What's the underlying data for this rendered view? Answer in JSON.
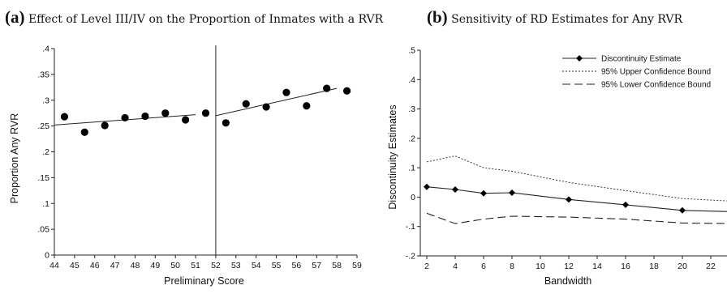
{
  "panels": {
    "a": {
      "letter": "(a)",
      "title": "Effect of Level III/IV on the Proportion of Inmates with a RVR"
    },
    "b": {
      "letter": "(b)",
      "title": "Sensitivity of RD Estimates for Any RVR"
    }
  },
  "chart_data": [
    {
      "type": "scatter",
      "title": "Effect of Level III/IV on the Proportion of Inmates with a RVR",
      "xlabel": "Preliminary Score",
      "ylabel": "Proportion Any RVR",
      "xlim": [
        44,
        59
      ],
      "ylim": [
        0,
        0.4
      ],
      "xticks": [
        "44",
        "45",
        "46",
        "47",
        "48",
        "49",
        "50",
        "51",
        "52",
        "53",
        "54",
        "55",
        "56",
        "57",
        "58",
        "59"
      ],
      "yticks": [
        "0",
        ".05",
        ".1",
        ".15",
        ".2",
        ".25",
        ".3",
        ".35",
        ".4"
      ],
      "cutoff": 52,
      "points": [
        {
          "x": 44.5,
          "y": 0.268
        },
        {
          "x": 45.5,
          "y": 0.238
        },
        {
          "x": 46.5,
          "y": 0.251
        },
        {
          "x": 47.5,
          "y": 0.266
        },
        {
          "x": 48.5,
          "y": 0.269
        },
        {
          "x": 49.5,
          "y": 0.275
        },
        {
          "x": 50.5,
          "y": 0.262
        },
        {
          "x": 51.5,
          "y": 0.275
        },
        {
          "x": 52.5,
          "y": 0.256
        },
        {
          "x": 53.5,
          "y": 0.293
        },
        {
          "x": 54.5,
          "y": 0.287
        },
        {
          "x": 55.5,
          "y": 0.315
        },
        {
          "x": 56.5,
          "y": 0.289
        },
        {
          "x": 57.5,
          "y": 0.323
        },
        {
          "x": 58.5,
          "y": 0.318
        }
      ],
      "fit_lines": [
        {
          "x": [
            44,
            51
          ],
          "y": [
            0.252,
            0.272
          ]
        },
        {
          "x": [
            52,
            58
          ],
          "y": [
            0.27,
            0.323
          ]
        }
      ],
      "grid": false
    },
    {
      "type": "line",
      "title": "Sensitivity of RD Estimates for Any RVR",
      "xlabel": "Bandwidth",
      "ylabel": "Discontinuity Estimates",
      "xlim": [
        2,
        24
      ],
      "ylim": [
        -0.2,
        0.5
      ],
      "xticks": [
        "2",
        "4",
        "6",
        "8",
        "10",
        "12",
        "14",
        "16",
        "18",
        "20",
        "22"
      ],
      "yticks": [
        "-.2",
        "-.1",
        "0",
        ".1",
        ".2",
        ".3",
        ".4",
        ".5"
      ],
      "legend_position": "top-right",
      "series": [
        {
          "name": "Discontinuity Estimate",
          "style": "solid-diamond",
          "x": [
            2,
            4,
            6,
            8,
            12,
            16,
            20,
            24
          ],
          "y": [
            0.035,
            0.026,
            0.013,
            0.015,
            -0.008,
            -0.026,
            -0.045,
            -0.05
          ]
        },
        {
          "name": "95% Upper Confidence Bound",
          "style": "dotted",
          "x": [
            2,
            4,
            6,
            8,
            12,
            16,
            20,
            24
          ],
          "y": [
            0.12,
            0.14,
            0.1,
            0.088,
            0.05,
            0.022,
            -0.005,
            -0.015
          ]
        },
        {
          "name": "95% Lower Confidence Bound",
          "style": "long-dash",
          "x": [
            2,
            4,
            6,
            8,
            12,
            16,
            20,
            24
          ],
          "y": [
            -0.055,
            -0.09,
            -0.075,
            -0.065,
            -0.068,
            -0.075,
            -0.088,
            -0.09
          ]
        }
      ],
      "grid": false
    }
  ]
}
